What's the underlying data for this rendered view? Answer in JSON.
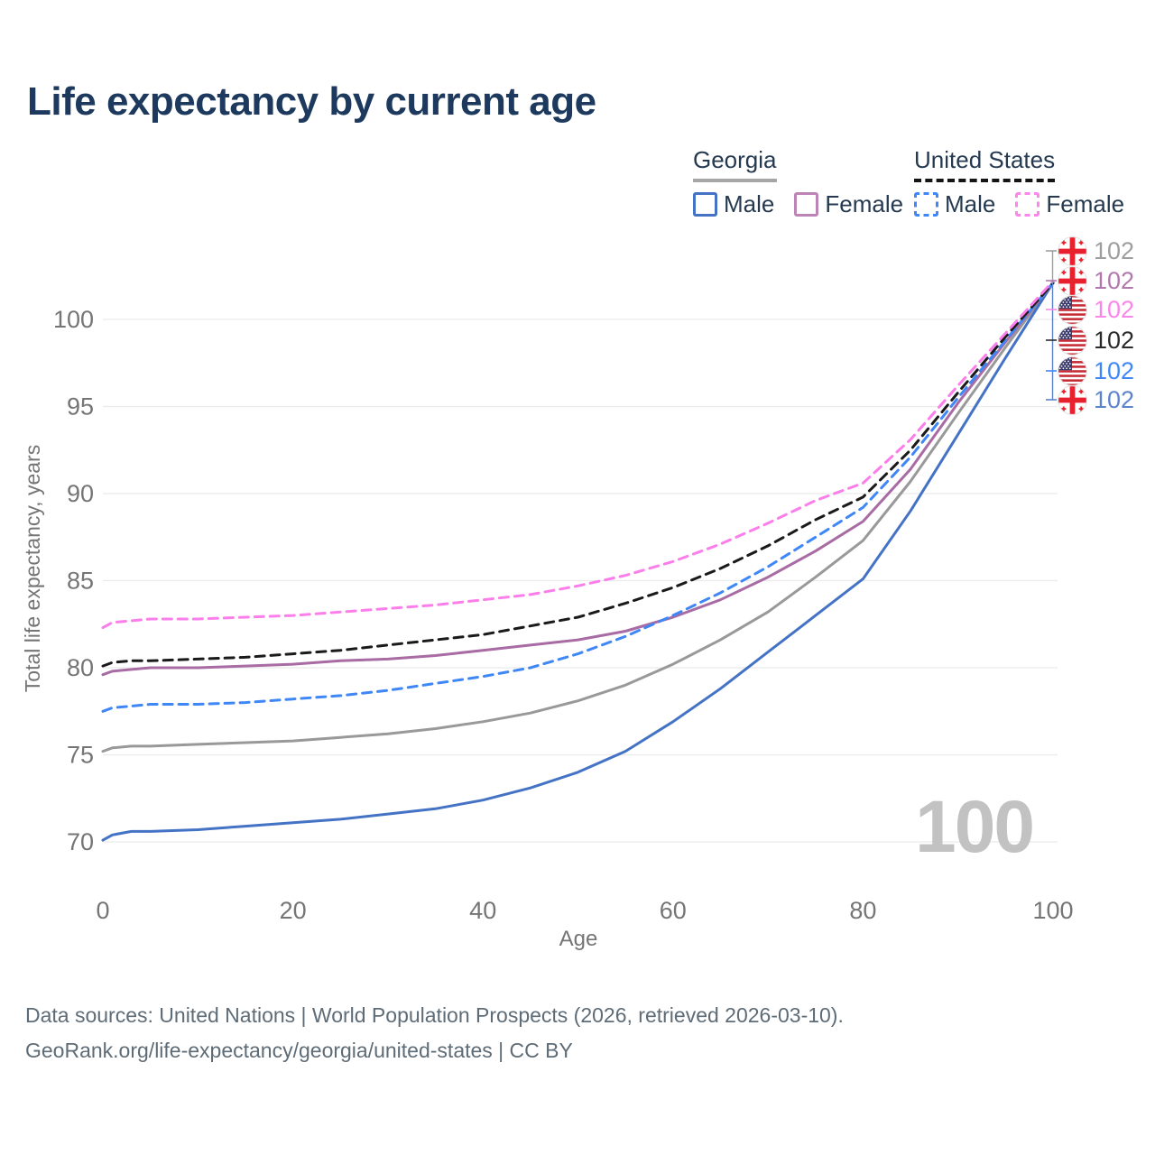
{
  "title": "Life expectancy by current age",
  "legend": {
    "groups": [
      {
        "label": "Georgia",
        "style": "solid",
        "items": [
          {
            "label": "Male"
          },
          {
            "label": "Female"
          }
        ]
      },
      {
        "label": "United States",
        "style": "dashed",
        "items": [
          {
            "label": "Male"
          },
          {
            "label": "Female"
          }
        ]
      }
    ]
  },
  "chart_data": {
    "type": "line",
    "title": "Life expectancy by current age",
    "xlabel": "Age",
    "ylabel": "Total life expectancy, years",
    "xlim": [
      0,
      100
    ],
    "ylim": [
      68.5,
      103.5
    ],
    "xticks": [
      "0",
      "20",
      "40",
      "60",
      "80",
      "100"
    ],
    "xtick_values": [
      0,
      20,
      40,
      60,
      80,
      100
    ],
    "yticks": [
      "70",
      "75",
      "80",
      "85",
      "90",
      "95",
      "100"
    ],
    "ytick_values": [
      70,
      75,
      80,
      85,
      90,
      95,
      100
    ],
    "grid": "horizontal-only",
    "legend_position": "top-right",
    "age_frame_indicator": "100",
    "x": [
      0,
      1,
      3,
      5,
      10,
      15,
      20,
      25,
      30,
      35,
      40,
      45,
      50,
      55,
      60,
      65,
      70,
      75,
      80,
      85,
      90,
      95,
      100
    ],
    "series": [
      {
        "id": "georgia_total",
        "name": "Georgia — Total",
        "country": "Georgia",
        "sex": "total",
        "color": "#999999",
        "dashed": false,
        "values": [
          75.2,
          75.4,
          75.5,
          75.5,
          75.6,
          75.7,
          75.8,
          76.0,
          76.2,
          76.5,
          76.9,
          77.4,
          78.1,
          79.0,
          80.2,
          81.6,
          83.2,
          85.2,
          87.3,
          90.7,
          94.6,
          98.4,
          102.1
        ]
      },
      {
        "id": "georgia_male",
        "name": "Georgia — Male",
        "country": "Georgia",
        "sex": "male",
        "color": "#4473c5",
        "dashed": false,
        "values": [
          70.1,
          70.4,
          70.6,
          70.6,
          70.7,
          70.9,
          71.1,
          71.3,
          71.6,
          71.9,
          72.4,
          73.1,
          74.0,
          75.2,
          76.9,
          78.8,
          80.9,
          83.0,
          85.1,
          89.0,
          93.4,
          97.8,
          102.1
        ]
      },
      {
        "id": "georgia_female",
        "name": "Georgia — Female",
        "country": "Georgia",
        "sex": "female",
        "color": "#a86ba4",
        "dashed": false,
        "values": [
          79.6,
          79.8,
          79.9,
          80.0,
          80.0,
          80.1,
          80.2,
          80.4,
          80.5,
          80.7,
          81.0,
          81.3,
          81.6,
          82.1,
          82.9,
          83.9,
          85.2,
          86.7,
          88.4,
          91.4,
          95.2,
          98.7,
          102.1
        ]
      },
      {
        "id": "us_male",
        "name": "United States — Male",
        "country": "United States",
        "sex": "male",
        "color": "#3f87f6",
        "dashed": true,
        "values": [
          77.5,
          77.7,
          77.8,
          77.9,
          77.9,
          78.0,
          78.2,
          78.4,
          78.7,
          79.1,
          79.5,
          80.0,
          80.8,
          81.8,
          83.0,
          84.3,
          85.8,
          87.5,
          89.2,
          92.1,
          95.5,
          98.8,
          102.1
        ]
      },
      {
        "id": "us_total",
        "name": "United States — Total",
        "country": "United States",
        "sex": "total",
        "color": "#1a1a1a",
        "dashed": true,
        "values": [
          80.1,
          80.3,
          80.4,
          80.4,
          80.5,
          80.6,
          80.8,
          81.0,
          81.3,
          81.6,
          81.9,
          82.4,
          82.9,
          83.7,
          84.6,
          85.7,
          87.0,
          88.5,
          89.8,
          92.5,
          95.8,
          99.0,
          102.1
        ]
      },
      {
        "id": "us_female",
        "name": "United States — Female",
        "country": "United States",
        "sex": "female",
        "color": "#fb7eea",
        "dashed": true,
        "values": [
          82.3,
          82.6,
          82.7,
          82.8,
          82.8,
          82.9,
          83.0,
          83.2,
          83.4,
          83.6,
          83.9,
          84.2,
          84.7,
          85.3,
          86.1,
          87.1,
          88.3,
          89.6,
          90.6,
          93.1,
          96.2,
          99.2,
          102.2
        ]
      }
    ]
  },
  "series_colors": {
    "georgia_male": "#4473c5",
    "georgia_female": "#bd84b8",
    "us_male": "#3f87f6",
    "us_female": "#fb86ea",
    "georgia_total": "#999999",
    "us_total": "#1a1a1a"
  },
  "end_labels": {
    "rows": [
      {
        "flag": "georgia",
        "value": "102",
        "color": "#9e9e9e",
        "series": "georgia_total"
      },
      {
        "flag": "georgia",
        "value": "102",
        "color": "#b078ad",
        "series": "georgia_female"
      },
      {
        "flag": "us",
        "value": "102",
        "color": "#fb86ea",
        "series": "us_female"
      },
      {
        "flag": "us",
        "value": "102",
        "color": "#2a2a2a",
        "series": "us_total"
      },
      {
        "flag": "us",
        "value": "102",
        "color": "#3f87f6",
        "series": "us_male"
      },
      {
        "flag": "georgia",
        "value": "102",
        "color": "#5c83cb",
        "series": "georgia_male"
      }
    ]
  },
  "footer": {
    "line1": "Data sources: United Nations | World Population Prospects (2026, retrieved 2026-03-10).",
    "line2": "GeoRank.org/life-expectancy/georgia/united-states | CC BY"
  }
}
